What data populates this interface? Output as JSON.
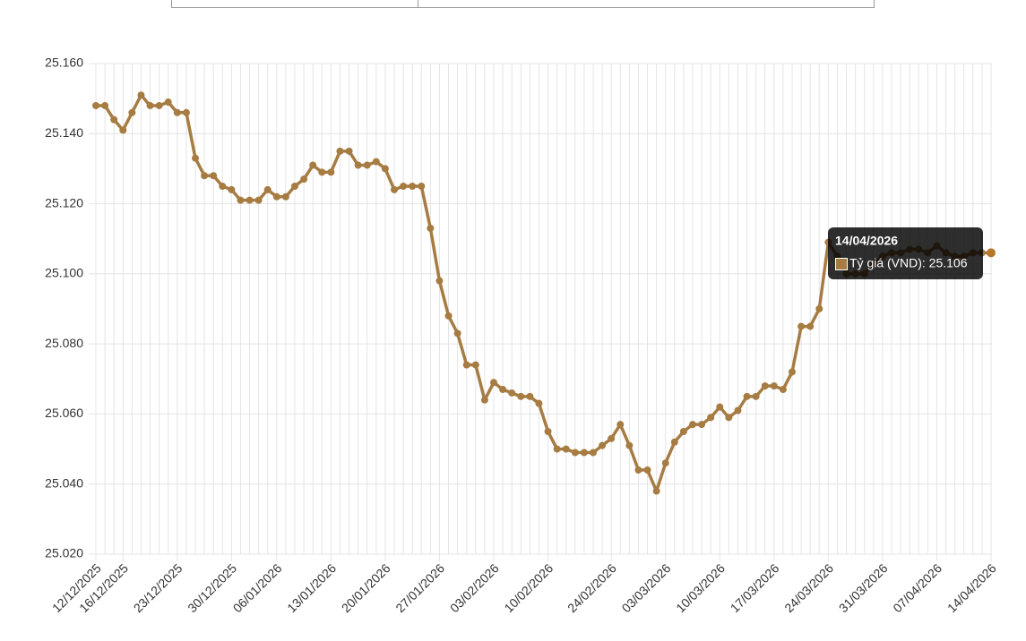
{
  "chart_data": {
    "type": "line",
    "categories": [
      "12/12/2025",
      null,
      null,
      "16/12/2025",
      null,
      null,
      null,
      null,
      null,
      "23/12/2025",
      null,
      null,
      null,
      null,
      null,
      "30/12/2025",
      null,
      null,
      null,
      null,
      "06/01/2026",
      null,
      null,
      null,
      null,
      null,
      "13/01/2026",
      null,
      null,
      null,
      null,
      null,
      "20/01/2026",
      null,
      null,
      null,
      null,
      null,
      "27/01/2026",
      null,
      null,
      null,
      null,
      null,
      "03/02/2026",
      null,
      null,
      null,
      null,
      null,
      "10/02/2026",
      null,
      null,
      null,
      null,
      null,
      null,
      "24/02/2026",
      null,
      null,
      null,
      null,
      null,
      "03/03/2026",
      null,
      null,
      null,
      null,
      null,
      "10/03/2026",
      null,
      null,
      null,
      null,
      null,
      "17/03/2026",
      null,
      null,
      null,
      null,
      null,
      "24/03/2026",
      null,
      null,
      null,
      null,
      null,
      "31/03/2026",
      null,
      null,
      null,
      null,
      null,
      "07/04/2026",
      null,
      null,
      null,
      null,
      null,
      "14/04/2026"
    ],
    "values": [
      25148,
      25148,
      25144,
      25141,
      25146,
      25151,
      25148,
      25148,
      25149,
      25146,
      25146,
      25133,
      25128,
      25128,
      25125,
      25124,
      25121,
      25121,
      25121,
      25124,
      25122,
      25122,
      25125,
      25127,
      25131,
      25129,
      25129,
      25135,
      25135,
      25131,
      25131,
      25132,
      25130,
      25124,
      25125,
      25125,
      25125,
      25113,
      25098,
      25088,
      25083,
      25074,
      25074,
      25064,
      25069,
      25067,
      25066,
      25065,
      25065,
      25063,
      25055,
      25050,
      25050,
      25049,
      25049,
      25049,
      25051,
      25053,
      25057,
      25051,
      25044,
      25044,
      25038,
      25046,
      25052,
      25055,
      25057,
      25057,
      25059,
      25062,
      25059,
      25061,
      25065,
      25065,
      25068,
      25068,
      25067,
      25072,
      25085,
      25085,
      25090,
      25109,
      25105,
      25100,
      25100,
      25100,
      25103,
      25105,
      25106,
      25106,
      25107,
      25107,
      25106,
      25108,
      25106,
      25105,
      25105,
      25106,
      25106,
      25106
    ],
    "color": "#a67c42",
    "ylim": [
      25020,
      25160
    ],
    "yticks": [
      {
        "value": 25020,
        "label": "25.020"
      },
      {
        "value": 25040,
        "label": "25.040"
      },
      {
        "value": 25060,
        "label": "25.060"
      },
      {
        "value": 25080,
        "label": "25.080"
      },
      {
        "value": 25100,
        "label": "25.100"
      },
      {
        "value": 25120,
        "label": "25.120"
      },
      {
        "value": 25140,
        "label": "25.140"
      },
      {
        "value": 25160,
        "label": "25.160"
      }
    ],
    "grid": true,
    "tooltip": {
      "title": "14/04/2026",
      "label": "Tỷ giá (VND): 25.106"
    }
  }
}
